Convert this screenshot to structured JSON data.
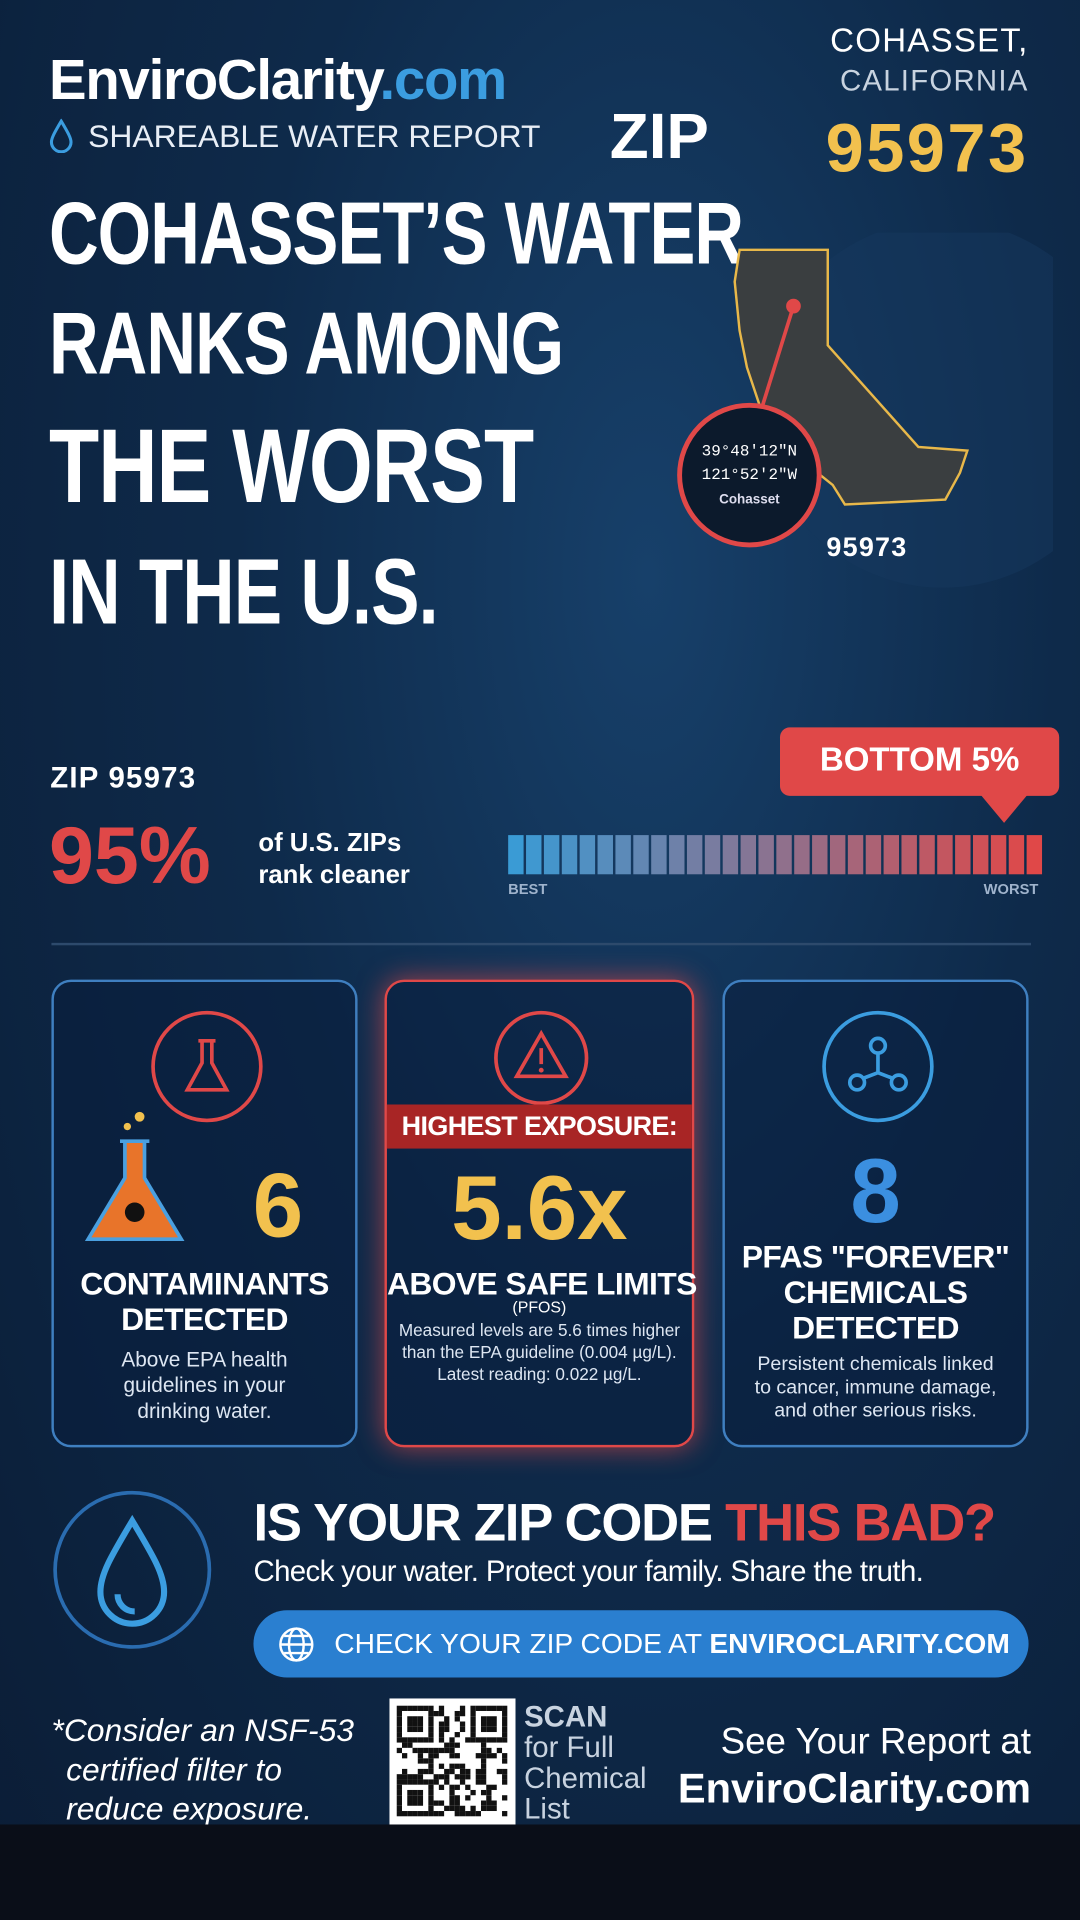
{
  "brand": {
    "name": "EnviroClarity",
    "tld": ".com",
    "tagline": "SHAREABLE WATER REPORT"
  },
  "location": {
    "city": "COHASSET,",
    "state": "CALIFORNIA",
    "zip_label": "ZIP",
    "zip": "95973"
  },
  "headline": [
    "COHASSET’S WATER",
    "RANKS AMONG",
    "THE WORST",
    "IN THE U.S."
  ],
  "map": {
    "lat": "39°48′12″N",
    "lon": "121°52′2″W",
    "place": "Cohasset",
    "zip": "95973"
  },
  "rank": {
    "zip_line": "ZIP 95973",
    "percent": "95%",
    "text": [
      "of U.S. ZIPs",
      "rank cleaner"
    ],
    "badge": "BOTTOM 5%",
    "best": "BEST",
    "worst": "WORST"
  },
  "cards": [
    {
      "number": "6",
      "title": [
        "CONTAMINANTS",
        "DETECTED"
      ],
      "text": [
        "Above EPA health",
        "guidelines in your",
        "drinking water."
      ]
    },
    {
      "banner": "HIGHEST EXPOSURE:",
      "number": "5.6x",
      "title": [
        "ABOVE SAFE LIMITS"
      ],
      "sub": "(PFOS)",
      "text": [
        "Measured levels are 5.6 times higher",
        "than the EPA guideline (0.004 µg/L).",
        "Latest reading: 0.022 µg/L."
      ]
    },
    {
      "number": "8",
      "title": [
        "PFAS \"FOREVER\"",
        "CHEMICALS",
        "DETECTED"
      ],
      "text": [
        "Persistent chemicals linked",
        "to cancer, immune damage,",
        "and other serious risks."
      ]
    }
  ],
  "cta": {
    "question": "IS YOUR ZIP CODE ",
    "highlight": "THIS BAD?",
    "sub": "Check your water. Protect your family. Share the truth.",
    "button_pre": "CHECK YOUR ZIP CODE AT ",
    "button_site": "ENVIROCLARITY.COM"
  },
  "footer": {
    "note": [
      "*Consider an NSF-53",
      "certified filter to",
      "reduce exposure."
    ],
    "scan": [
      "SCAN",
      "for Full",
      "Chemical",
      "List"
    ],
    "see": "See Your Report at",
    "site": "EnviroClarity.com"
  }
}
